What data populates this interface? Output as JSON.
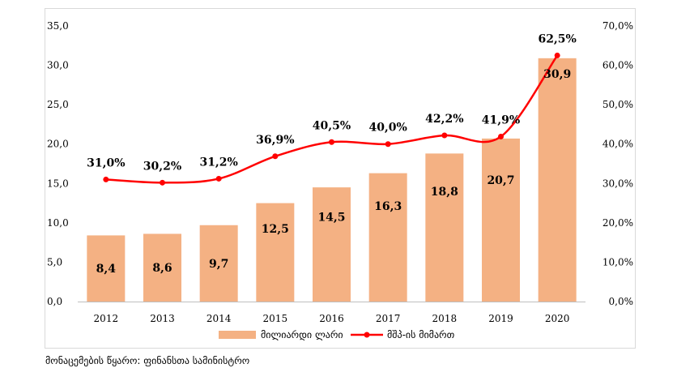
{
  "chart_data": {
    "type": "bar",
    "categories": [
      "2012",
      "2013",
      "2014",
      "2015",
      "2016",
      "2017",
      "2018",
      "2019",
      "2020"
    ],
    "series": [
      {
        "name": "მილიარდი ლარი",
        "type": "bar",
        "axis": "left",
        "color": "#f4b183",
        "values": [
          8.4,
          8.6,
          9.7,
          12.5,
          14.5,
          16.3,
          18.8,
          20.7,
          30.9
        ],
        "labels": [
          "8,4",
          "8,6",
          "9,7",
          "12,5",
          "14,5",
          "16,3",
          "18,8",
          "20,7",
          "30,9"
        ]
      },
      {
        "name": "მშპ-ის მიმართ",
        "type": "line",
        "axis": "right",
        "color": "#ff0000",
        "values": [
          31.0,
          30.2,
          31.2,
          36.9,
          40.5,
          40.0,
          42.2,
          41.9,
          62.5
        ],
        "labels": [
          "31,0%",
          "30,2%",
          "31,2%",
          "36,9%",
          "40,5%",
          "40,0%",
          "42,2%",
          "41,9%",
          "62,5%"
        ]
      }
    ],
    "y_left": {
      "lim": [
        0,
        35
      ],
      "ticks": [
        0,
        5,
        10,
        15,
        20,
        25,
        30,
        35
      ],
      "tick_labels": [
        "0,0",
        "5,0",
        "10,0",
        "15,0",
        "20,0",
        "25,0",
        "30,0",
        "35,0"
      ]
    },
    "y_right": {
      "lim": [
        0,
        70
      ],
      "ticks": [
        0,
        10,
        20,
        30,
        40,
        50,
        60,
        70
      ],
      "tick_labels": [
        "0,0%",
        "10,0%",
        "20,0%",
        "30,0%",
        "40,0%",
        "50,0%",
        "60,0%",
        "70,0%"
      ]
    },
    "grid": false,
    "legend_position": "bottom"
  },
  "source_note": "მონაცემების წყარო: ფინანსთა სამინისტრო"
}
